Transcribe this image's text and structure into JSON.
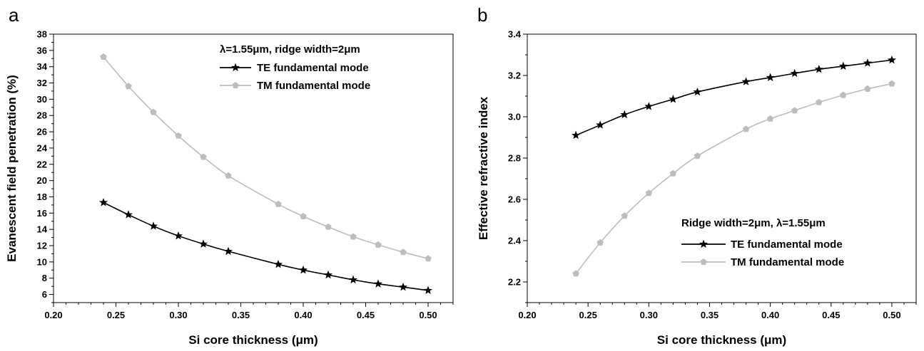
{
  "chart_data": [
    {
      "type": "line",
      "panel_label": "a",
      "xlabel": "Si core thickness (μm)",
      "ylabel": "Evanescent field penetration (%)",
      "xlim": [
        0.2,
        0.52
      ],
      "ylim": [
        5,
        38
      ],
      "xticks": [
        "0.20",
        "0.25",
        "0.30",
        "0.35",
        "0.40",
        "0.45",
        "0.50"
      ],
      "yticks": [
        "6",
        "8",
        "10",
        "12",
        "14",
        "16",
        "18",
        "20",
        "22",
        "24",
        "26",
        "28",
        "30",
        "32",
        "34",
        "36",
        "38"
      ],
      "grid": false,
      "legend": {
        "title": "λ=1.55μm, ridge width=2μm",
        "placement": "top-right"
      },
      "x": [
        0.24,
        0.26,
        0.28,
        0.3,
        0.32,
        0.34,
        0.38,
        0.4,
        0.42,
        0.44,
        0.46,
        0.48,
        0.5
      ],
      "series": [
        {
          "name": "TE fundamental mode",
          "color": "#000000",
          "marker": "star",
          "values": [
            17.3,
            15.8,
            14.4,
            13.2,
            12.2,
            11.3,
            9.7,
            9.0,
            8.4,
            7.8,
            7.3,
            6.9,
            6.5
          ]
        },
        {
          "name": "TM fundamental mode",
          "color": "#bdbdbd",
          "marker": "pentagon",
          "values": [
            35.2,
            31.6,
            28.4,
            25.5,
            22.9,
            20.6,
            17.1,
            15.6,
            14.3,
            13.1,
            12.1,
            11.2,
            10.4
          ]
        }
      ]
    },
    {
      "type": "line",
      "panel_label": "b",
      "xlabel": "Si core thickness (μm)",
      "ylabel": "Effective refractive index",
      "xlim": [
        0.2,
        0.52
      ],
      "ylim": [
        2.1,
        3.4
      ],
      "xticks": [
        "0.20",
        "0.25",
        "0.30",
        "0.35",
        "0.40",
        "0.45",
        "0.50"
      ],
      "yticks": [
        "2.2",
        "2.4",
        "2.6",
        "2.8",
        "3.0",
        "3.2",
        "3.4"
      ],
      "grid": false,
      "legend": {
        "title": "Ridge width=2μm, λ=1.55μm",
        "placement": "bottom-right"
      },
      "x": [
        0.24,
        0.26,
        0.28,
        0.3,
        0.32,
        0.34,
        0.38,
        0.4,
        0.42,
        0.44,
        0.46,
        0.48,
        0.5
      ],
      "series": [
        {
          "name": "TE fundamental mode",
          "color": "#000000",
          "marker": "star",
          "values": [
            2.91,
            2.96,
            3.01,
            3.05,
            3.085,
            3.12,
            3.17,
            3.19,
            3.21,
            3.23,
            3.245,
            3.26,
            3.275
          ]
        },
        {
          "name": "TM fundamental mode",
          "color": "#bdbdbd",
          "marker": "pentagon",
          "values": [
            2.24,
            2.39,
            2.52,
            2.63,
            2.725,
            2.81,
            2.94,
            2.99,
            3.03,
            3.07,
            3.105,
            3.135,
            3.16
          ]
        }
      ]
    }
  ]
}
